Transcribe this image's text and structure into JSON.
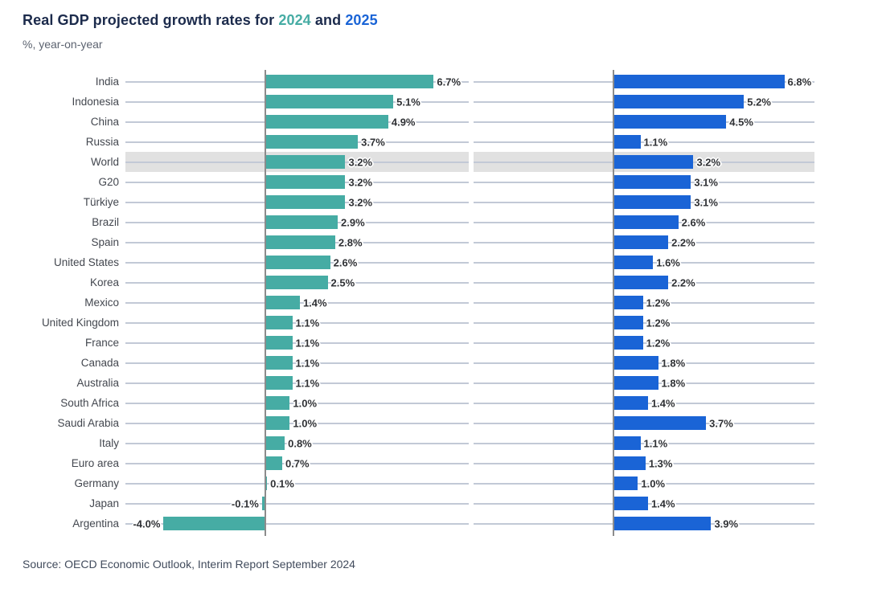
{
  "header": {
    "title_prefix": "Real GDP projected growth rates for ",
    "title_year1": "2024",
    "title_conj": " and ",
    "title_year2": "2025",
    "subtitle": "%, year-on-year"
  },
  "footer": {
    "source": "Source: OECD Economic Outlook, Interim Report September 2024"
  },
  "colors": {
    "teal_2024": "#46aca4",
    "blue_2025": "#1a64d6",
    "highlight_band": "#e1e1e1",
    "gridline": "#c2c9d6",
    "axis": "#8c8c8c",
    "title_navy": "#1c2b4c"
  },
  "chart_data": {
    "type": "bar",
    "orientation": "horizontal",
    "title": "Real GDP projected growth rates for 2024 and 2025",
    "subtitle": "%, year-on-year",
    "value_suffix": "%",
    "highlighted_category": "World",
    "legend_position": "in-title",
    "grid": true,
    "xlim": [
      -5.5,
      8.1
    ],
    "categories": [
      "India",
      "Indonesia",
      "China",
      "Russia",
      "World",
      "G20",
      "Türkiye",
      "Brazil",
      "Spain",
      "United States",
      "Korea",
      "Mexico",
      "United Kingdom",
      "France",
      "Canada",
      "Australia",
      "South Africa",
      "Saudi Arabia",
      "Italy",
      "Euro area",
      "Germany",
      "Japan",
      "Argentina"
    ],
    "series": [
      {
        "name": "2024",
        "color": "#46aca4",
        "values": [
          6.7,
          5.1,
          4.9,
          3.7,
          3.2,
          3.2,
          3.2,
          2.9,
          2.8,
          2.6,
          2.5,
          1.4,
          1.1,
          1.1,
          1.1,
          1.1,
          1.0,
          1.0,
          0.8,
          0.7,
          0.1,
          -0.1,
          -4.0
        ],
        "display": [
          "6.7%",
          "5.1%",
          "4.9%",
          "3.7%",
          "3.2%",
          "3.2%",
          "3.2%",
          "2.9%",
          "2.8%",
          "2.6%",
          "2.5%",
          "1.4%",
          "1.1%",
          "1.1%",
          "1.1%",
          "1.1%",
          "1.0%",
          "1.0%",
          "0.8%",
          "0.7%",
          "0.1%",
          "-0.1%",
          "-4.0%"
        ]
      },
      {
        "name": "2025",
        "color": "#1a64d6",
        "values": [
          6.8,
          5.2,
          4.5,
          1.1,
          3.2,
          3.1,
          3.1,
          2.6,
          2.2,
          1.6,
          2.2,
          1.2,
          1.2,
          1.2,
          1.8,
          1.8,
          1.4,
          3.7,
          1.1,
          1.3,
          1.0,
          1.4,
          3.9
        ],
        "display": [
          "6.8%",
          "5.2%",
          "4.5%",
          "1.1%",
          "3.2%",
          "3.1%",
          "3.1%",
          "2.6%",
          "2.2%",
          "1.6%",
          "2.2%",
          "1.2%",
          "1.2%",
          "1.2%",
          "1.8%",
          "1.8%",
          "1.4%",
          "3.7%",
          "1.1%",
          "1.3%",
          "1.0%",
          "1.4%",
          "3.9%"
        ]
      }
    ],
    "source": "Source: OECD Economic Outlook, Interim Report September 2024"
  }
}
